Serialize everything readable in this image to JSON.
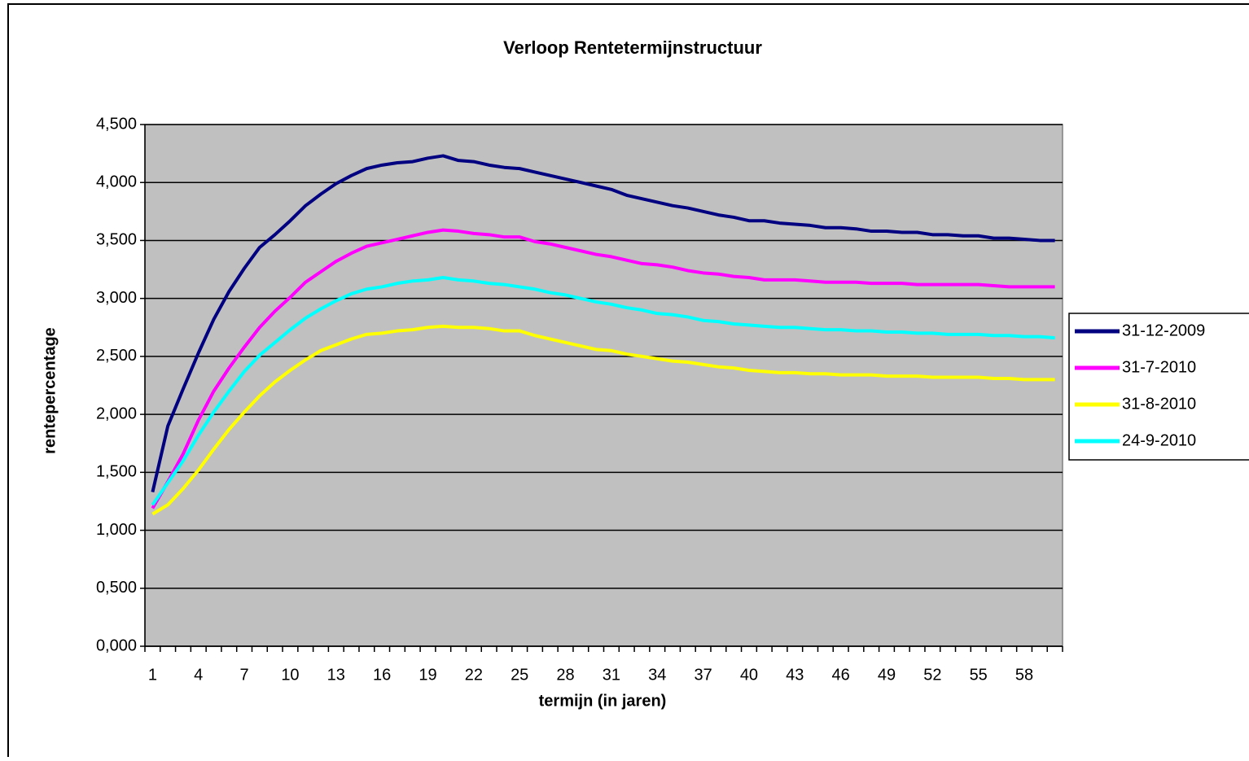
{
  "chart_data": {
    "type": "line",
    "title": "Verloop Rentetermijnstructuur",
    "x_label": "termijn (in jaren)",
    "y_label": "rentepercentage",
    "categories": [
      1,
      null,
      null,
      4,
      null,
      null,
      7,
      null,
      null,
      10,
      null,
      null,
      13,
      null,
      null,
      16,
      null,
      null,
      19,
      null,
      null,
      22,
      null,
      null,
      25,
      null,
      null,
      28,
      null,
      null,
      31,
      null,
      null,
      34,
      null,
      null,
      37,
      null,
      null,
      40,
      null,
      null,
      43,
      null,
      null,
      46,
      null,
      null,
      49,
      null,
      null,
      52,
      null,
      null,
      55,
      null,
      null,
      58,
      null,
      null
    ],
    "ylim": [
      0,
      4.5
    ],
    "yticks": [
      {
        "value": 0,
        "label": "0,000"
      },
      {
        "value": 0.5,
        "label": "0,500"
      },
      {
        "value": 1,
        "label": "1,000"
      },
      {
        "value": 1.5,
        "label": "1,500"
      },
      {
        "value": 2,
        "label": "2,000"
      },
      {
        "value": 2.5,
        "label": "2,500"
      },
      {
        "value": 3,
        "label": "3,000"
      },
      {
        "value": 3.5,
        "label": "3,500"
      },
      {
        "value": 4,
        "label": "4,000"
      },
      {
        "value": 4.5,
        "label": "4,500"
      }
    ],
    "grid": true,
    "legend": "right",
    "series": [
      {
        "name": "31-12-2009",
        "color": "#000080",
        "values": [
          1.33,
          1.9,
          2.22,
          2.53,
          2.82,
          3.06,
          3.26,
          3.44,
          3.55,
          3.67,
          3.8,
          3.9,
          3.99,
          4.06,
          4.12,
          4.15,
          4.17,
          4.18,
          4.21,
          4.23,
          4.19,
          4.18,
          4.15,
          4.13,
          4.12,
          4.09,
          4.06,
          4.03,
          4.0,
          3.97,
          3.94,
          3.89,
          3.86,
          3.83,
          3.8,
          3.78,
          3.75,
          3.72,
          3.7,
          3.67,
          3.67,
          3.65,
          3.64,
          3.63,
          3.61,
          3.61,
          3.6,
          3.58,
          3.58,
          3.57,
          3.57,
          3.55,
          3.55,
          3.54,
          3.54,
          3.52,
          3.52,
          3.51,
          3.5,
          3.5
        ]
      },
      {
        "name": "31-7-2010",
        "color": "#ff00ff",
        "values": [
          1.19,
          1.42,
          1.66,
          1.95,
          2.2,
          2.4,
          2.58,
          2.75,
          2.89,
          3.01,
          3.14,
          3.23,
          3.32,
          3.39,
          3.45,
          3.48,
          3.51,
          3.54,
          3.57,
          3.59,
          3.58,
          3.56,
          3.55,
          3.53,
          3.53,
          3.49,
          3.47,
          3.44,
          3.41,
          3.38,
          3.36,
          3.33,
          3.3,
          3.29,
          3.27,
          3.24,
          3.22,
          3.21,
          3.19,
          3.18,
          3.16,
          3.16,
          3.16,
          3.15,
          3.14,
          3.14,
          3.14,
          3.13,
          3.13,
          3.13,
          3.12,
          3.12,
          3.12,
          3.12,
          3.12,
          3.11,
          3.1,
          3.1,
          3.1,
          3.1
        ]
      },
      {
        "name": "31-8-2010",
        "color": "#ffff00",
        "values": [
          1.14,
          1.22,
          1.36,
          1.52,
          1.7,
          1.87,
          2.02,
          2.16,
          2.28,
          2.38,
          2.47,
          2.55,
          2.6,
          2.65,
          2.69,
          2.7,
          2.72,
          2.73,
          2.75,
          2.76,
          2.75,
          2.75,
          2.74,
          2.72,
          2.72,
          2.68,
          2.65,
          2.62,
          2.59,
          2.56,
          2.55,
          2.52,
          2.5,
          2.48,
          2.46,
          2.45,
          2.43,
          2.41,
          2.4,
          2.38,
          2.37,
          2.36,
          2.36,
          2.35,
          2.35,
          2.34,
          2.34,
          2.34,
          2.33,
          2.33,
          2.33,
          2.32,
          2.32,
          2.32,
          2.32,
          2.31,
          2.31,
          2.3,
          2.3,
          2.3
        ]
      },
      {
        "name": "24-9-2010",
        "color": "#00ffff",
        "values": [
          1.22,
          1.41,
          1.6,
          1.82,
          2.02,
          2.2,
          2.37,
          2.51,
          2.62,
          2.73,
          2.83,
          2.91,
          2.98,
          3.04,
          3.08,
          3.1,
          3.13,
          3.15,
          3.16,
          3.18,
          3.16,
          3.15,
          3.13,
          3.12,
          3.1,
          3.08,
          3.05,
          3.03,
          3.0,
          2.97,
          2.95,
          2.92,
          2.9,
          2.87,
          2.86,
          2.84,
          2.81,
          2.8,
          2.78,
          2.77,
          2.76,
          2.75,
          2.75,
          2.74,
          2.73,
          2.73,
          2.72,
          2.72,
          2.71,
          2.71,
          2.7,
          2.7,
          2.69,
          2.69,
          2.69,
          2.68,
          2.68,
          2.67,
          2.67,
          2.66
        ]
      }
    ]
  }
}
